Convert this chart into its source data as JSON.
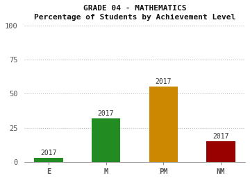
{
  "title_line1": "GRADE 04 - MATHEMATICS",
  "title_line2": "Percentage of Students by Achievement Level",
  "categories": [
    "E",
    "M",
    "PM",
    "NM"
  ],
  "values": [
    3,
    32,
    55,
    15
  ],
  "bar_colors": [
    "#228B22",
    "#228B22",
    "#CC8800",
    "#990000"
  ],
  "bar_labels": [
    "2017",
    "2017",
    "2017",
    "2017"
  ],
  "ylim": [
    0,
    100
  ],
  "yticks": [
    0,
    25,
    50,
    75,
    100
  ],
  "background_color": "#ffffff",
  "grid_color": "#bbbbbb",
  "font_family": "monospace",
  "bar_width": 0.5
}
